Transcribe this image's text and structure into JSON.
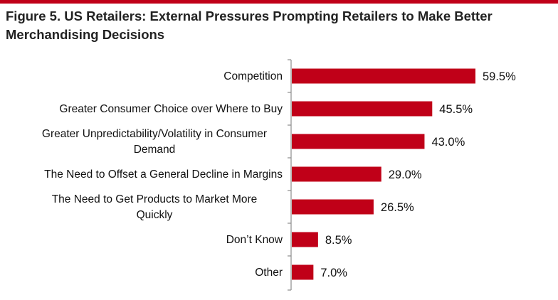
{
  "colors": {
    "accent": "#c00018",
    "bar": "#c00018",
    "axis": "#8c8c8c",
    "text": "#111111"
  },
  "chart_data": {
    "type": "bar",
    "orientation": "horizontal",
    "title": "Figure 5. US Retailers: External Pressures Prompting Retailers to Make Better Merchandising Decisions",
    "categories": [
      "Competition",
      "Greater Consumer Choice over Where to Buy",
      "Greater Unpredictability/Volatility in Consumer Demand",
      "The Need to Offset a General Decline in Margins",
      "The Need to Get Products to Market More Quickly",
      "Don’t Know",
      "Other"
    ],
    "values": [
      59.5,
      45.5,
      43.0,
      29.0,
      26.5,
      8.5,
      7.0
    ],
    "data_labels": [
      "59.5%",
      "45.5%",
      "43.0%",
      "29.0%",
      "26.5%",
      "8.5%",
      "7.0%"
    ],
    "xlim": [
      0,
      60
    ],
    "xlabel": "",
    "ylabel": "",
    "grid": false,
    "legend": "none"
  }
}
